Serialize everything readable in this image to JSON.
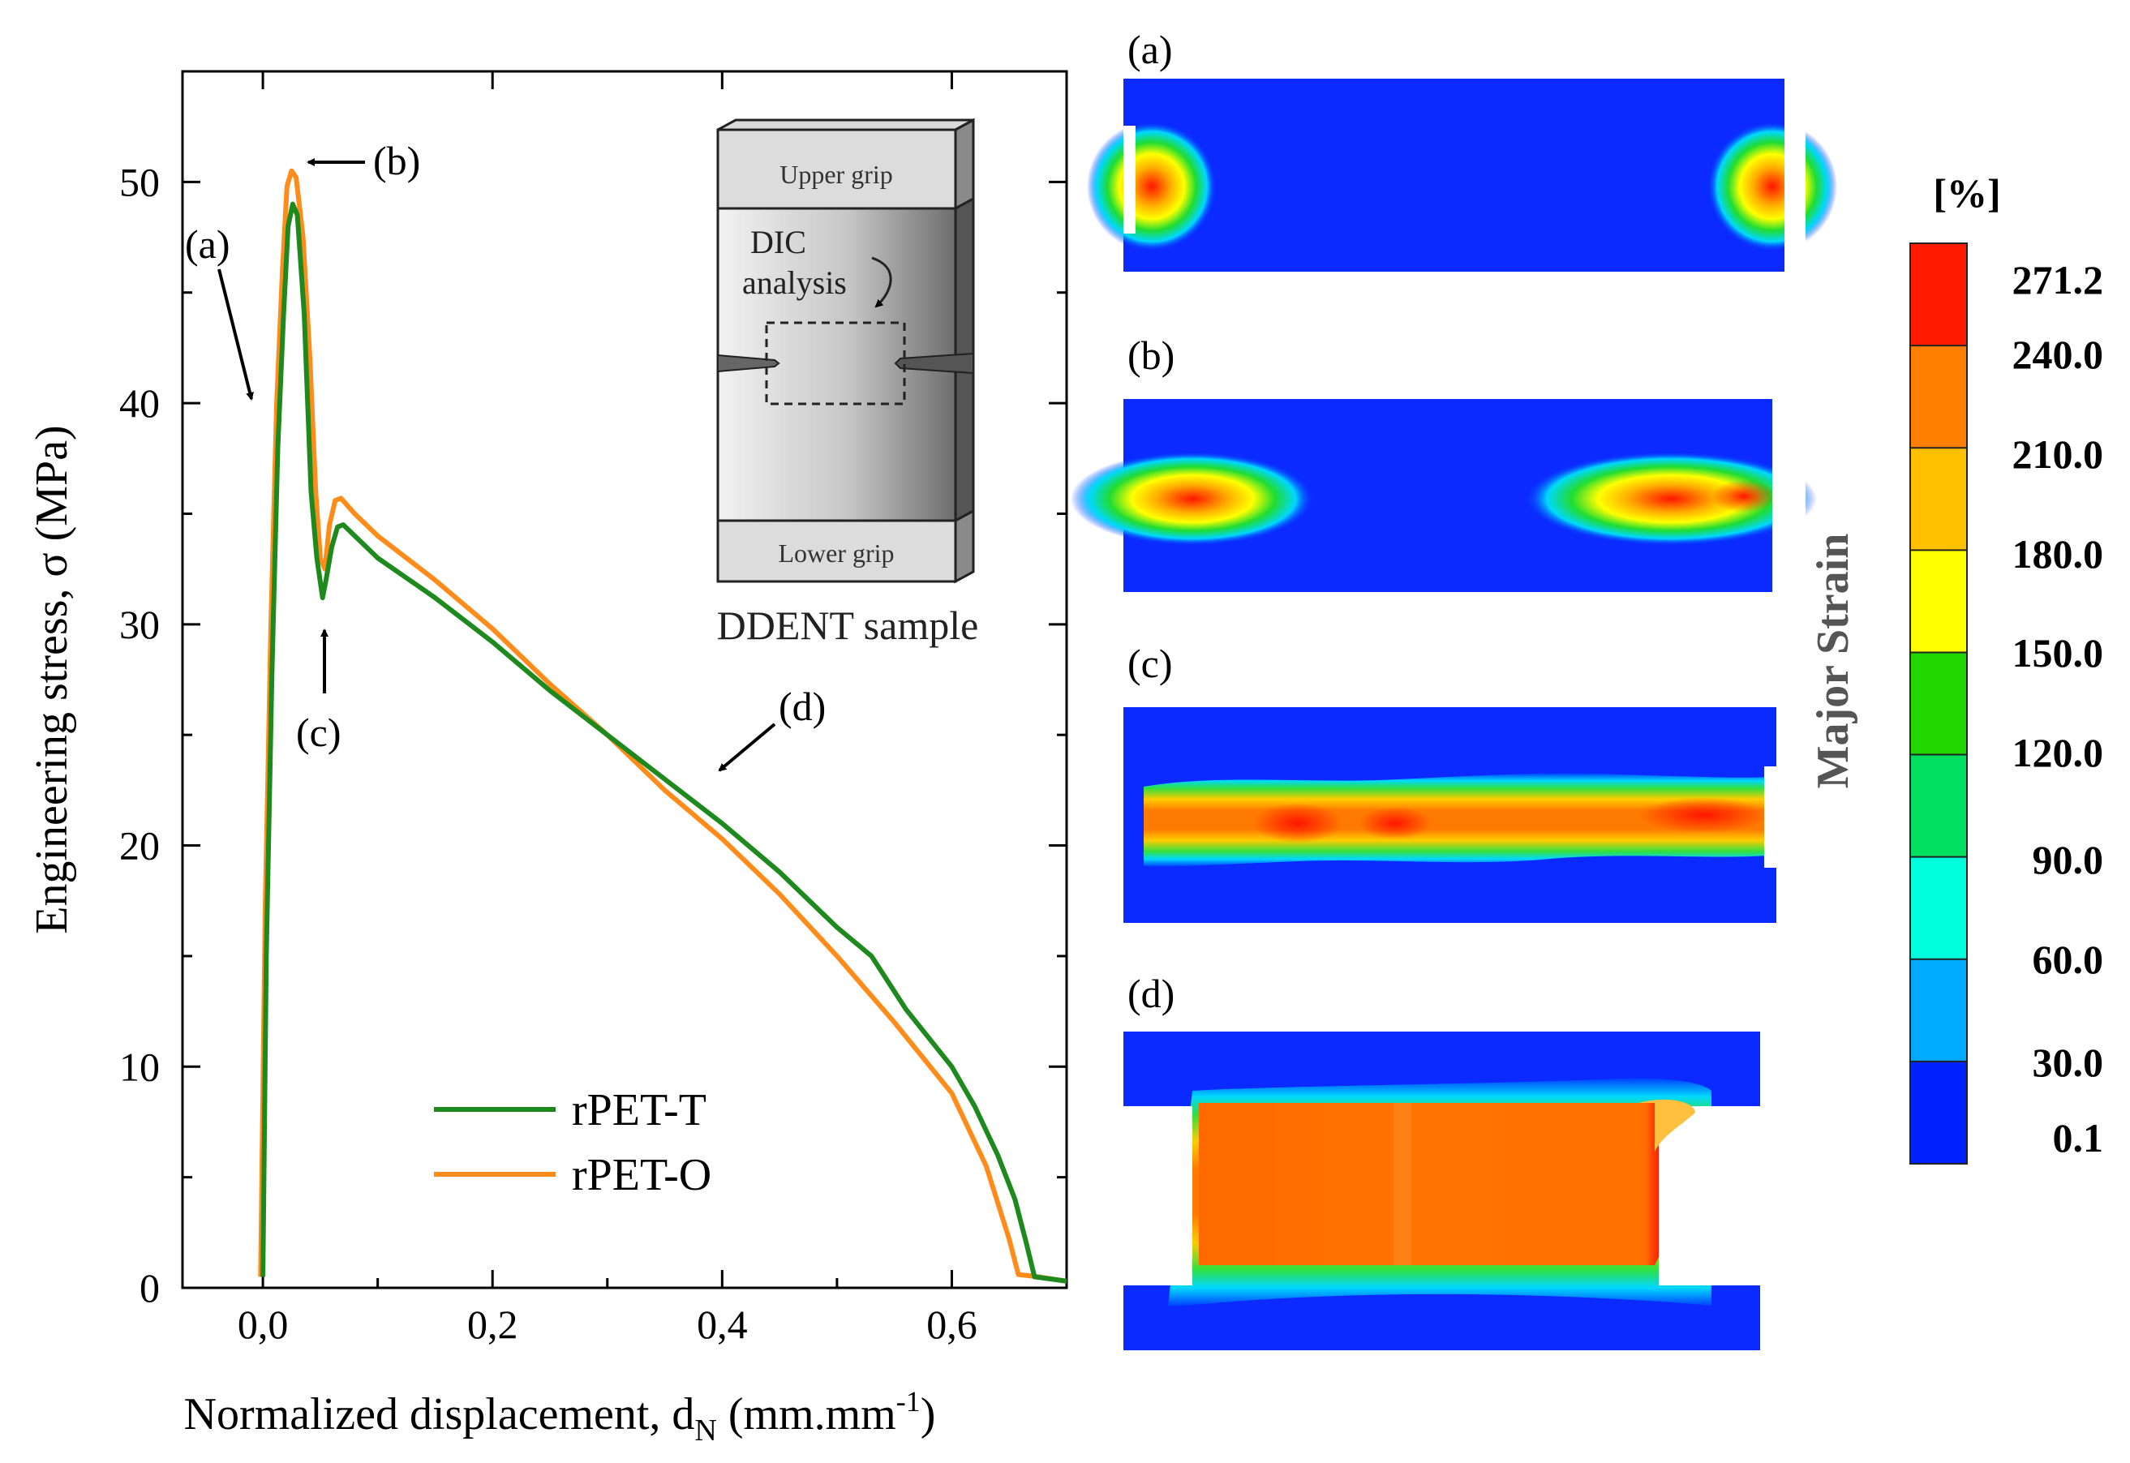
{
  "chart_data": {
    "type": "line",
    "xlabel": "Normalized displacement, d",
    "xlabel_sub": "N",
    "xlabel_unit_pre": " (mm.mm",
    "xlabel_unit_sup": "-1",
    "xlabel_unit_post": ")",
    "ylabel": "Engineering stress, σ (MPa)",
    "xlim": [
      -0.07,
      0.7
    ],
    "ylim": [
      0,
      55
    ],
    "xticks": [
      0.0,
      0.2,
      0.4,
      0.6
    ],
    "xtick_labels": [
      "0,0",
      "0,2",
      "0,4",
      "0,6"
    ],
    "yticks": [
      0,
      10,
      20,
      30,
      40,
      50
    ],
    "ytick_labels": [
      "0",
      "10",
      "20",
      "30",
      "40",
      "50"
    ],
    "legend": {
      "position": "bottom-left",
      "entries": [
        "rPET-T",
        "rPET-O"
      ]
    },
    "series": [
      {
        "name": "rPET-T",
        "color": "#1e8a1e",
        "points": [
          [
            0.0,
            0.5
          ],
          [
            0.003,
            15
          ],
          [
            0.008,
            28
          ],
          [
            0.013,
            38
          ],
          [
            0.018,
            44
          ],
          [
            0.022,
            48
          ],
          [
            0.026,
            49
          ],
          [
            0.03,
            48.5
          ],
          [
            0.036,
            44
          ],
          [
            0.042,
            36
          ],
          [
            0.047,
            33
          ],
          [
            0.052,
            31.2
          ],
          [
            0.055,
            32
          ],
          [
            0.06,
            33.5
          ],
          [
            0.065,
            34.4
          ],
          [
            0.07,
            34.5
          ],
          [
            0.08,
            34
          ],
          [
            0.1,
            33
          ],
          [
            0.15,
            31.2
          ],
          [
            0.2,
            29.2
          ],
          [
            0.25,
            27
          ],
          [
            0.3,
            25
          ],
          [
            0.35,
            23
          ],
          [
            0.4,
            21
          ],
          [
            0.45,
            18.8
          ],
          [
            0.5,
            16.3
          ],
          [
            0.53,
            15
          ],
          [
            0.56,
            12.6
          ],
          [
            0.6,
            10
          ],
          [
            0.62,
            8.2
          ],
          [
            0.64,
            6
          ],
          [
            0.655,
            4
          ],
          [
            0.665,
            2
          ],
          [
            0.672,
            0.5
          ],
          [
            0.7,
            0.3
          ]
        ]
      },
      {
        "name": "rPET-O",
        "color": "#ff8c1a",
        "points": [
          [
            -0.002,
            0.5
          ],
          [
            0.002,
            17
          ],
          [
            0.007,
            30
          ],
          [
            0.012,
            40
          ],
          [
            0.017,
            46
          ],
          [
            0.021,
            49.8
          ],
          [
            0.025,
            50.5
          ],
          [
            0.029,
            50.2
          ],
          [
            0.035,
            47.5
          ],
          [
            0.041,
            42
          ],
          [
            0.046,
            36
          ],
          [
            0.05,
            33
          ],
          [
            0.054,
            32.5
          ],
          [
            0.058,
            34.5
          ],
          [
            0.063,
            35.6
          ],
          [
            0.068,
            35.7
          ],
          [
            0.08,
            35
          ],
          [
            0.1,
            34
          ],
          [
            0.15,
            32
          ],
          [
            0.2,
            29.8
          ],
          [
            0.25,
            27.3
          ],
          [
            0.3,
            25
          ],
          [
            0.35,
            22.5
          ],
          [
            0.4,
            20.3
          ],
          [
            0.45,
            17.8
          ],
          [
            0.5,
            15
          ],
          [
            0.55,
            12
          ],
          [
            0.6,
            8.8
          ],
          [
            0.63,
            5.5
          ],
          [
            0.65,
            2.2
          ],
          [
            0.658,
            0.6
          ],
          [
            0.675,
            0.5
          ],
          [
            0.7,
            0.3
          ]
        ]
      }
    ],
    "annotations": [
      {
        "label": "(a)"
      },
      {
        "label": "(b)"
      },
      {
        "label": "(c)"
      },
      {
        "label": "(d)"
      }
    ],
    "inset": {
      "upper_grip": "Upper grip",
      "lower_grip": "Lower grip",
      "dic_line1": "DIC",
      "dic_line2": "analysis",
      "caption": "DDENT sample"
    }
  },
  "strain_maps": {
    "panels": [
      "(a)",
      "(b)",
      "(c)",
      "(d)"
    ],
    "colorbar": {
      "unit": "[%]",
      "title": "Major Strain",
      "ticks": [
        "271.2",
        "240.0",
        "210.0",
        "180.0",
        "150.0",
        "120.0",
        "90.0",
        "60.0",
        "30.0",
        "0.1"
      ],
      "colors": [
        "#0022ff",
        "#00aaff",
        "#00ffdd",
        "#00e060",
        "#22d600",
        "#ffff00",
        "#ffc000",
        "#ff8000",
        "#ff1a00"
      ]
    }
  }
}
